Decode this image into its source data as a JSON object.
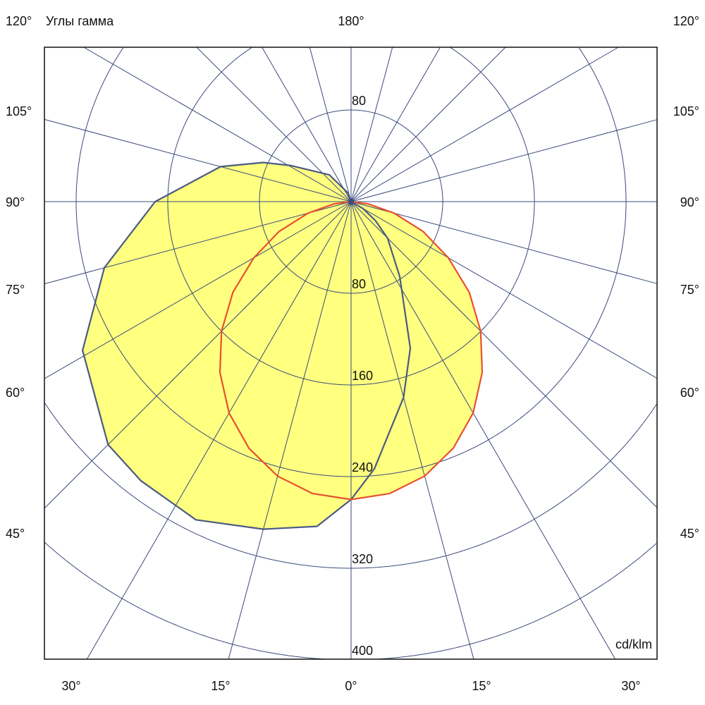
{
  "chart_data": {
    "type": "polar",
    "title": "Углы гамма",
    "unit": "cd/klm",
    "radial_ticks": [
      80,
      160,
      240,
      320,
      400
    ],
    "radial_range": [
      0,
      400
    ],
    "top_ring_label": "80",
    "angle_step_deg": 15,
    "top_label": "180°",
    "side_labels": [
      "120°",
      "105°",
      "90°",
      "75°",
      "60°",
      "45°"
    ],
    "bottom_labels": [
      "30°",
      "15°",
      "0°",
      "15°",
      "30°"
    ],
    "fill_color": "#ffff80",
    "grid_color": "#3b4a7c",
    "series": [
      {
        "color": "#4b5a82",
        "points": [
          [
            -90,
            0
          ],
          [
            -60,
            12
          ],
          [
            -52,
            27
          ],
          [
            -45,
            45
          ],
          [
            -33,
            78
          ],
          [
            -22,
            138
          ],
          [
            -15,
            177
          ],
          [
            -5,
            234
          ],
          [
            0,
            260
          ],
          [
            6,
            285
          ],
          [
            15,
            296
          ],
          [
            26,
            309
          ],
          [
            37,
            305
          ],
          [
            45,
            300
          ],
          [
            61,
            268
          ],
          [
            75,
            223
          ],
          [
            90,
            171
          ],
          [
            105,
            118
          ],
          [
            114,
            84
          ],
          [
            121,
            61
          ],
          [
            141,
            30
          ],
          [
            160,
            8
          ],
          [
            180,
            0
          ]
        ]
      },
      {
        "color": "#e8502e",
        "points": [
          [
            -90,
            0
          ],
          [
            -82.5,
            15
          ],
          [
            -75,
            39
          ],
          [
            -67.5,
            68
          ],
          [
            -60,
            98
          ],
          [
            -52.5,
            130
          ],
          [
            -45,
            160
          ],
          [
            -37.5,
            188
          ],
          [
            -30,
            213
          ],
          [
            -22.5,
            233
          ],
          [
            -15,
            248
          ],
          [
            -7.5,
            257
          ],
          [
            0,
            260
          ],
          [
            7.5,
            257
          ],
          [
            15,
            248
          ],
          [
            22.5,
            233
          ],
          [
            30,
            213
          ],
          [
            37.5,
            188
          ],
          [
            45,
            160
          ],
          [
            52.5,
            130
          ],
          [
            60,
            98
          ],
          [
            67.5,
            68
          ],
          [
            75,
            39
          ],
          [
            82.5,
            15
          ],
          [
            90,
            0
          ]
        ]
      }
    ]
  }
}
